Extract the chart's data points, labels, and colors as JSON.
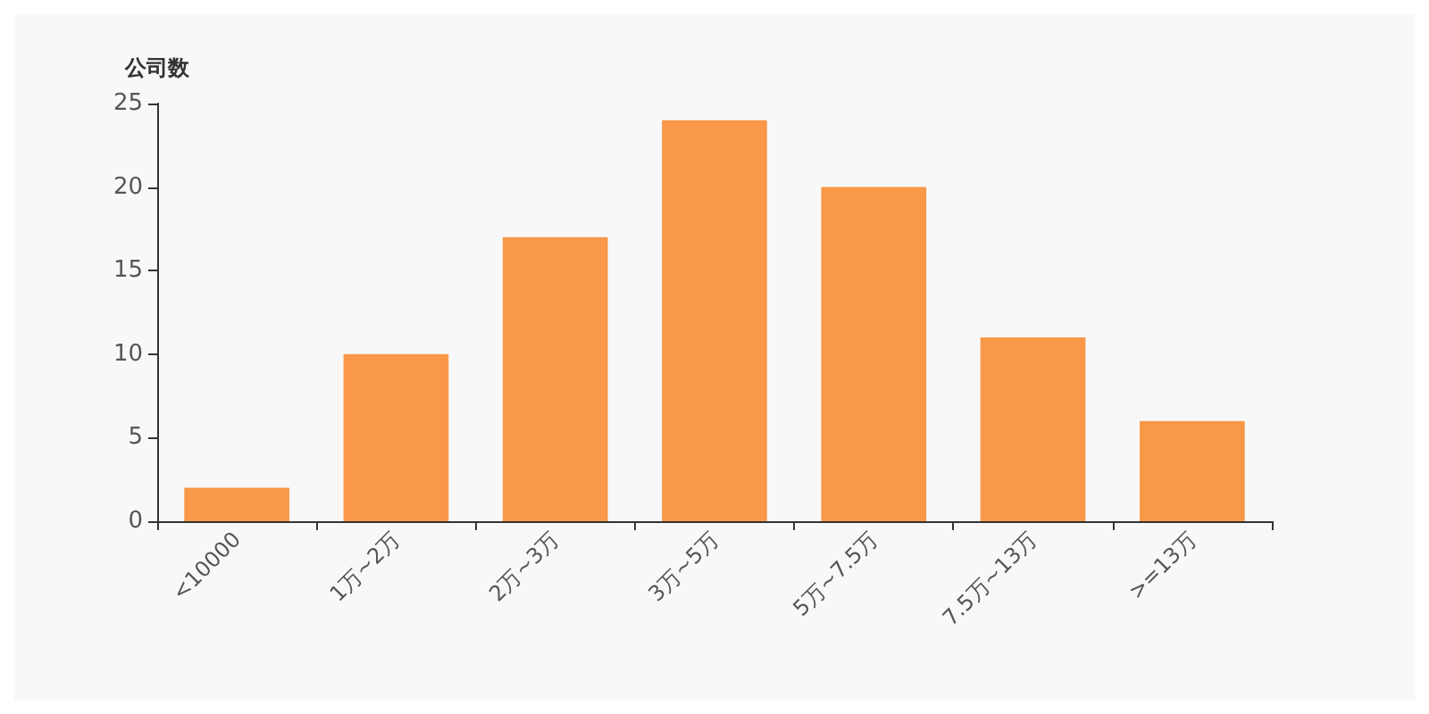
{
  "chart_data": {
    "type": "bar",
    "ylabel": "公司数",
    "categories": [
      "<10000",
      "1万~2万",
      "2万~3万",
      "3万~5万",
      "5万~7.5万",
      "7.5万~13万",
      ">=13万"
    ],
    "values": [
      2,
      10,
      17,
      24,
      20,
      11,
      6
    ],
    "color": "#f89848",
    "ylim": [
      0,
      25
    ],
    "yticks": [
      0,
      5,
      10,
      15,
      20,
      25
    ],
    "grid": false
  }
}
